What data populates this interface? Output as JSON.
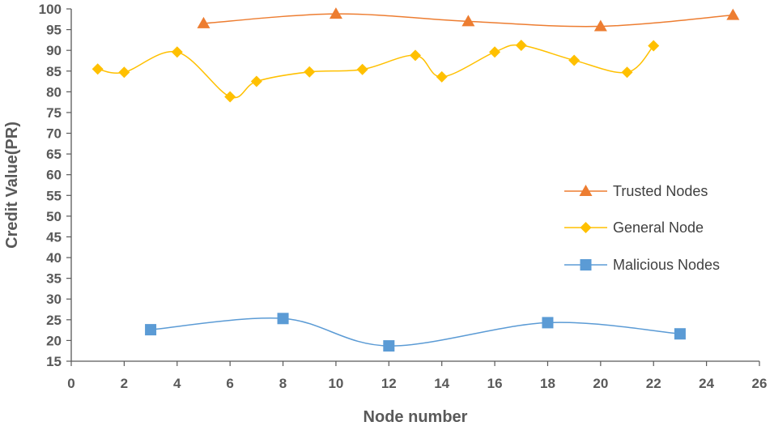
{
  "chart_data": {
    "type": "line",
    "title": "",
    "xlabel": "Node number",
    "ylabel": "Credit Value(PR)",
    "xlim": [
      0,
      26
    ],
    "ylim": [
      15,
      100
    ],
    "x_ticks": [
      0,
      2,
      4,
      6,
      8,
      10,
      12,
      14,
      16,
      18,
      20,
      22,
      24,
      26
    ],
    "y_ticks": [
      15,
      20,
      25,
      30,
      35,
      40,
      45,
      50,
      55,
      60,
      65,
      70,
      75,
      80,
      85,
      90,
      95,
      100
    ],
    "grid": false,
    "legend_position": "right",
    "smooth": true,
    "series": [
      {
        "name": "Trusted Nodes",
        "marker": "triangle",
        "color": "#ED7D31",
        "x": [
          5,
          10,
          15,
          20,
          25
        ],
        "y": [
          96.5,
          98.8,
          97,
          95.8,
          98.5
        ]
      },
      {
        "name": "General Node",
        "marker": "diamond",
        "color": "#FFC000",
        "x": [
          1,
          2,
          4,
          6,
          7,
          9,
          11,
          13,
          14,
          16,
          17,
          19,
          21,
          22
        ],
        "y": [
          85.5,
          84.7,
          89.6,
          78.8,
          82.5,
          84.8,
          85.4,
          88.8,
          83.6,
          89.6,
          91.2,
          87.6,
          84.7,
          91.1
        ]
      },
      {
        "name": "Malicious Nodes",
        "marker": "square",
        "color": "#5B9BD5",
        "x": [
          3,
          8,
          12,
          18,
          23
        ],
        "y": [
          22.6,
          25.3,
          18.7,
          24.3,
          21.6
        ]
      }
    ]
  }
}
